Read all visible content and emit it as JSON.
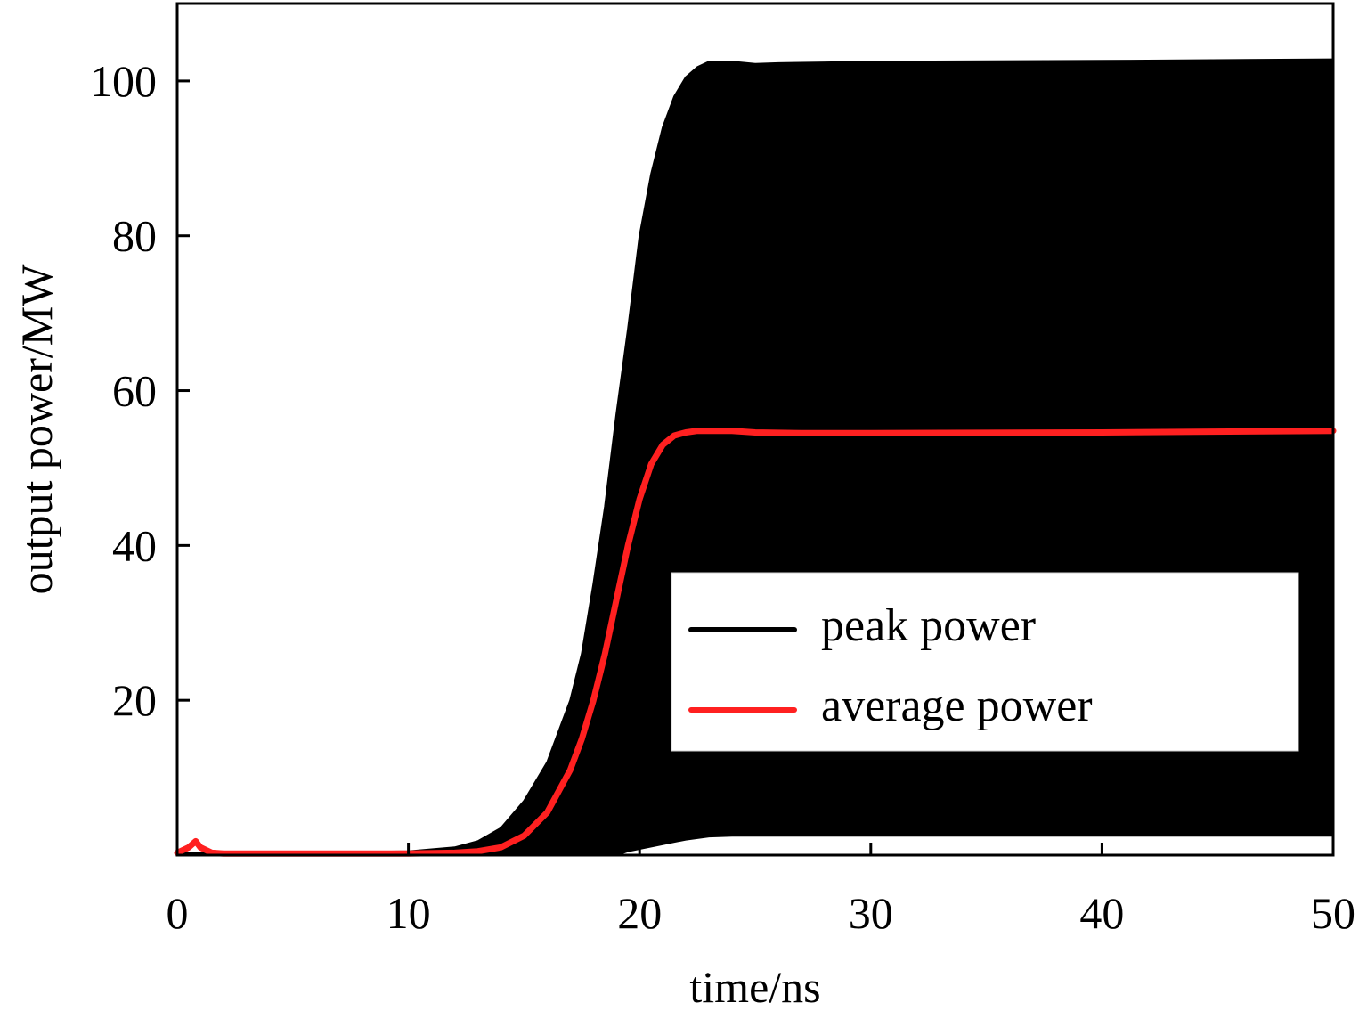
{
  "chart_data": {
    "type": "line",
    "title": "",
    "xlabel": "time/ns",
    "ylabel": "output power/MW",
    "xlim": [
      0,
      50
    ],
    "ylim": [
      0,
      110
    ],
    "xticks": [
      0,
      10,
      20,
      30,
      40,
      50
    ],
    "yticks": [
      20,
      40,
      60,
      80,
      100
    ],
    "grid": false,
    "legend_position": "lower-right",
    "series": [
      {
        "name": "peak power",
        "color": "#000000",
        "kind": "filled-band",
        "x": [
          0,
          5,
          10,
          12,
          13,
          14,
          15,
          16,
          17,
          17.5,
          18,
          18.5,
          19,
          19.5,
          20,
          20.5,
          21,
          21.5,
          22,
          22.5,
          23,
          24,
          25,
          26,
          28,
          30,
          40,
          50
        ],
        "upper": [
          0.3,
          0.3,
          0.5,
          1.0,
          1.8,
          3.5,
          7,
          12,
          20,
          26,
          35,
          45,
          57,
          68,
          80,
          88,
          94,
          98,
          100.5,
          101.8,
          102.5,
          102.5,
          102.2,
          102.3,
          102.4,
          102.5,
          102.6,
          102.8
        ],
        "lower": [
          0,
          0,
          0,
          0,
          0,
          0,
          0,
          0,
          0,
          0,
          0,
          0,
          0,
          0.5,
          0.8,
          1.1,
          1.4,
          1.7,
          2.0,
          2.2,
          2.4,
          2.5,
          2.5,
          2.5,
          2.5,
          2.5,
          2.5,
          2.5
        ]
      },
      {
        "name": "average power",
        "color": "#ff2020",
        "x": [
          0,
          0.5,
          0.8,
          1.0,
          1.5,
          2,
          5,
          10,
          12,
          13,
          14,
          15,
          16,
          17,
          17.5,
          18,
          18.5,
          19,
          19.5,
          20,
          20.5,
          21,
          21.5,
          22,
          22.5,
          23,
          24,
          25,
          27,
          30,
          40,
          50
        ],
        "values": [
          0.3,
          1.0,
          1.8,
          1.0,
          0.3,
          0.2,
          0.2,
          0.2,
          0.3,
          0.5,
          1.0,
          2.5,
          5.5,
          11,
          15,
          20,
          26,
          33,
          40,
          46,
          50.5,
          53,
          54.2,
          54.6,
          54.8,
          54.8,
          54.8,
          54.6,
          54.5,
          54.5,
          54.6,
          54.8
        ]
      }
    ]
  }
}
